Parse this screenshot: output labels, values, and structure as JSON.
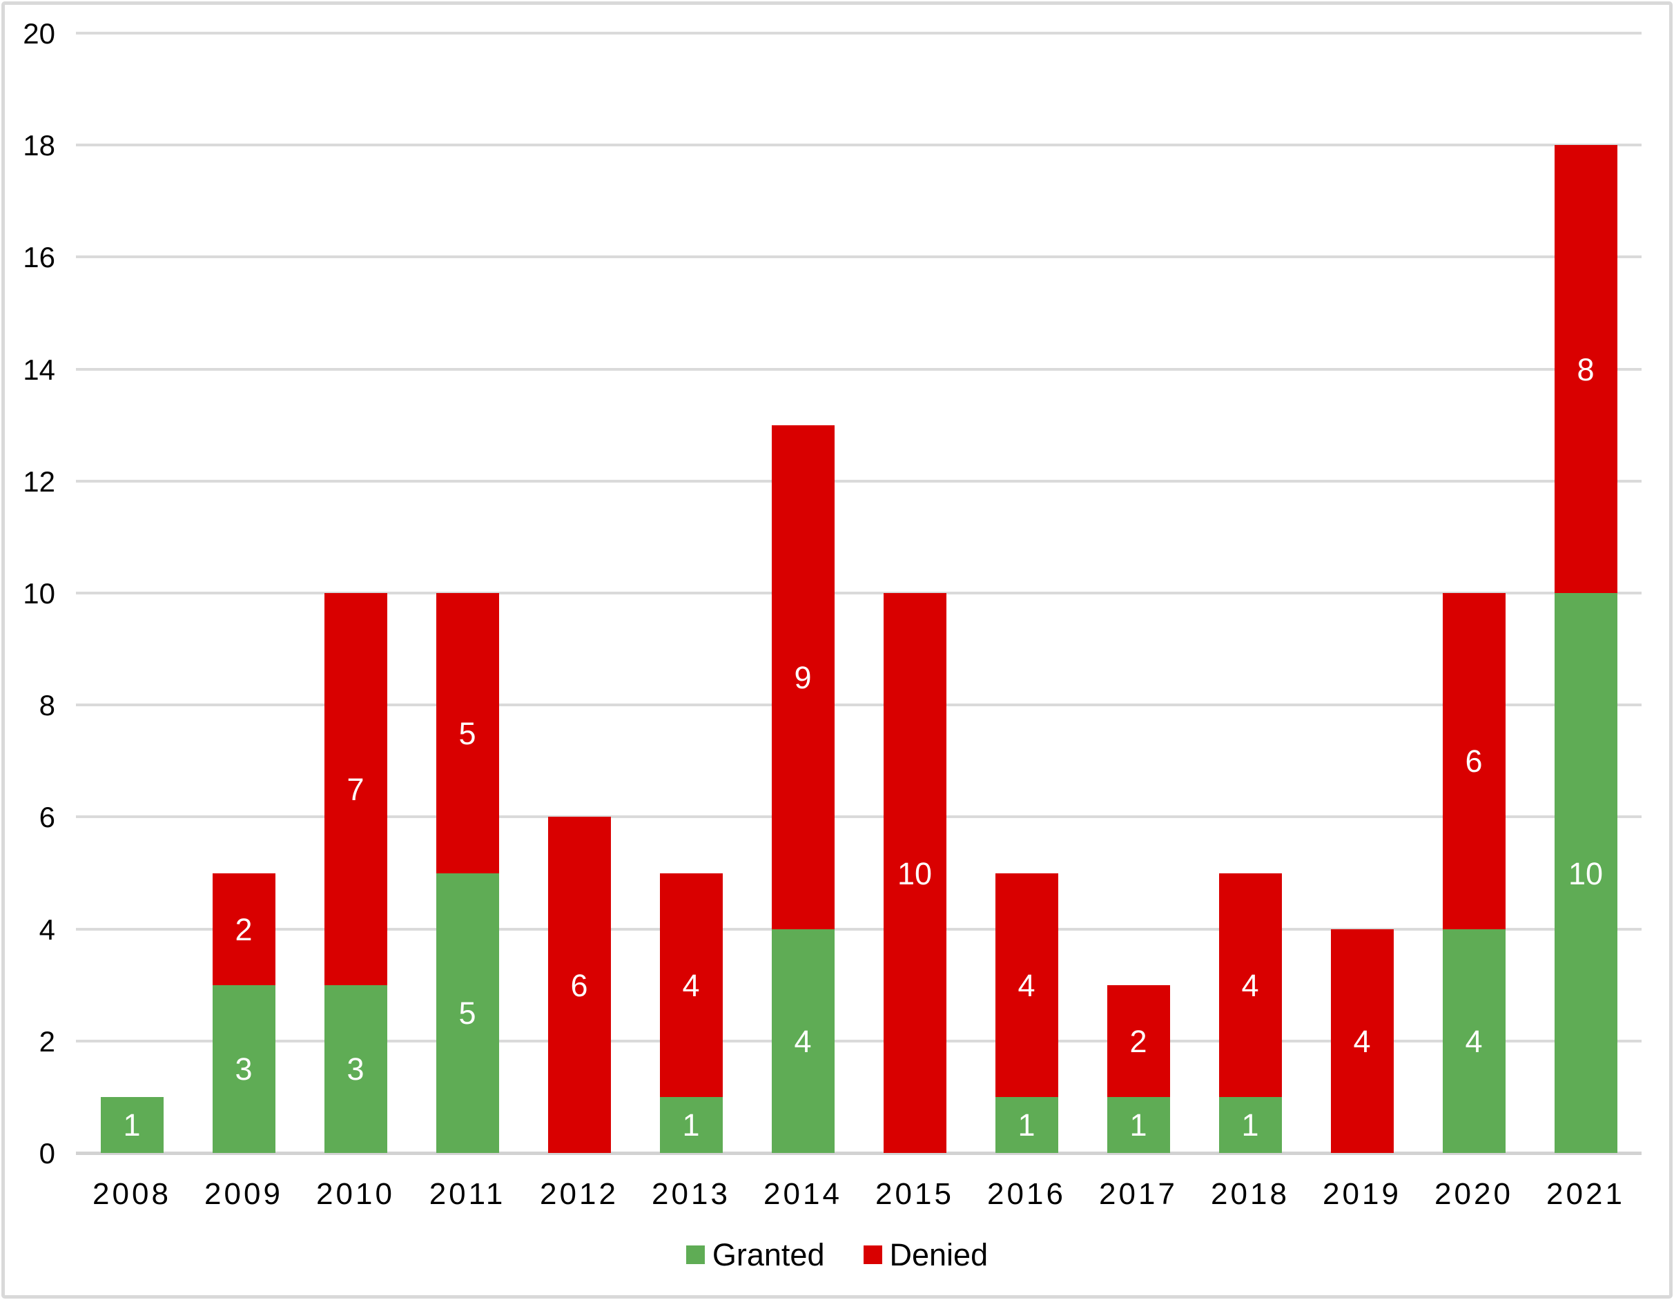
{
  "chart_data": {
    "type": "bar",
    "stacked": true,
    "title": "",
    "xlabel": "",
    "ylabel": "",
    "categories": [
      "2008",
      "2009",
      "2010",
      "2011",
      "2012",
      "2013",
      "2014",
      "2015",
      "2016",
      "2017",
      "2018",
      "2019",
      "2020",
      "2021"
    ],
    "series": [
      {
        "name": "Granted",
        "color": "#5FAC55",
        "values": [
          1,
          3,
          3,
          5,
          0,
          1,
          4,
          0,
          1,
          1,
          1,
          0,
          4,
          10
        ]
      },
      {
        "name": "Denied",
        "color": "#D90000",
        "values": [
          0,
          2,
          7,
          5,
          6,
          4,
          9,
          10,
          4,
          2,
          4,
          4,
          6,
          8
        ]
      }
    ],
    "totals": [
      1,
      5,
      10,
      10,
      6,
      5,
      13,
      10,
      5,
      3,
      5,
      4,
      10,
      18
    ],
    "ylim": [
      0,
      20
    ],
    "y_ticks": [
      0,
      2,
      4,
      6,
      8,
      10,
      12,
      14,
      16,
      18,
      20
    ],
    "grid": true,
    "show_data_labels": true,
    "data_label_color": "#ffffff",
    "legend_position": "bottom-center",
    "gridline_color": "#DADADA",
    "axis_line_color": "#D2D2D2",
    "axis_text_color": "#000000",
    "frame_border_color": "#D9D9D9",
    "background_color": "#ffffff"
  }
}
